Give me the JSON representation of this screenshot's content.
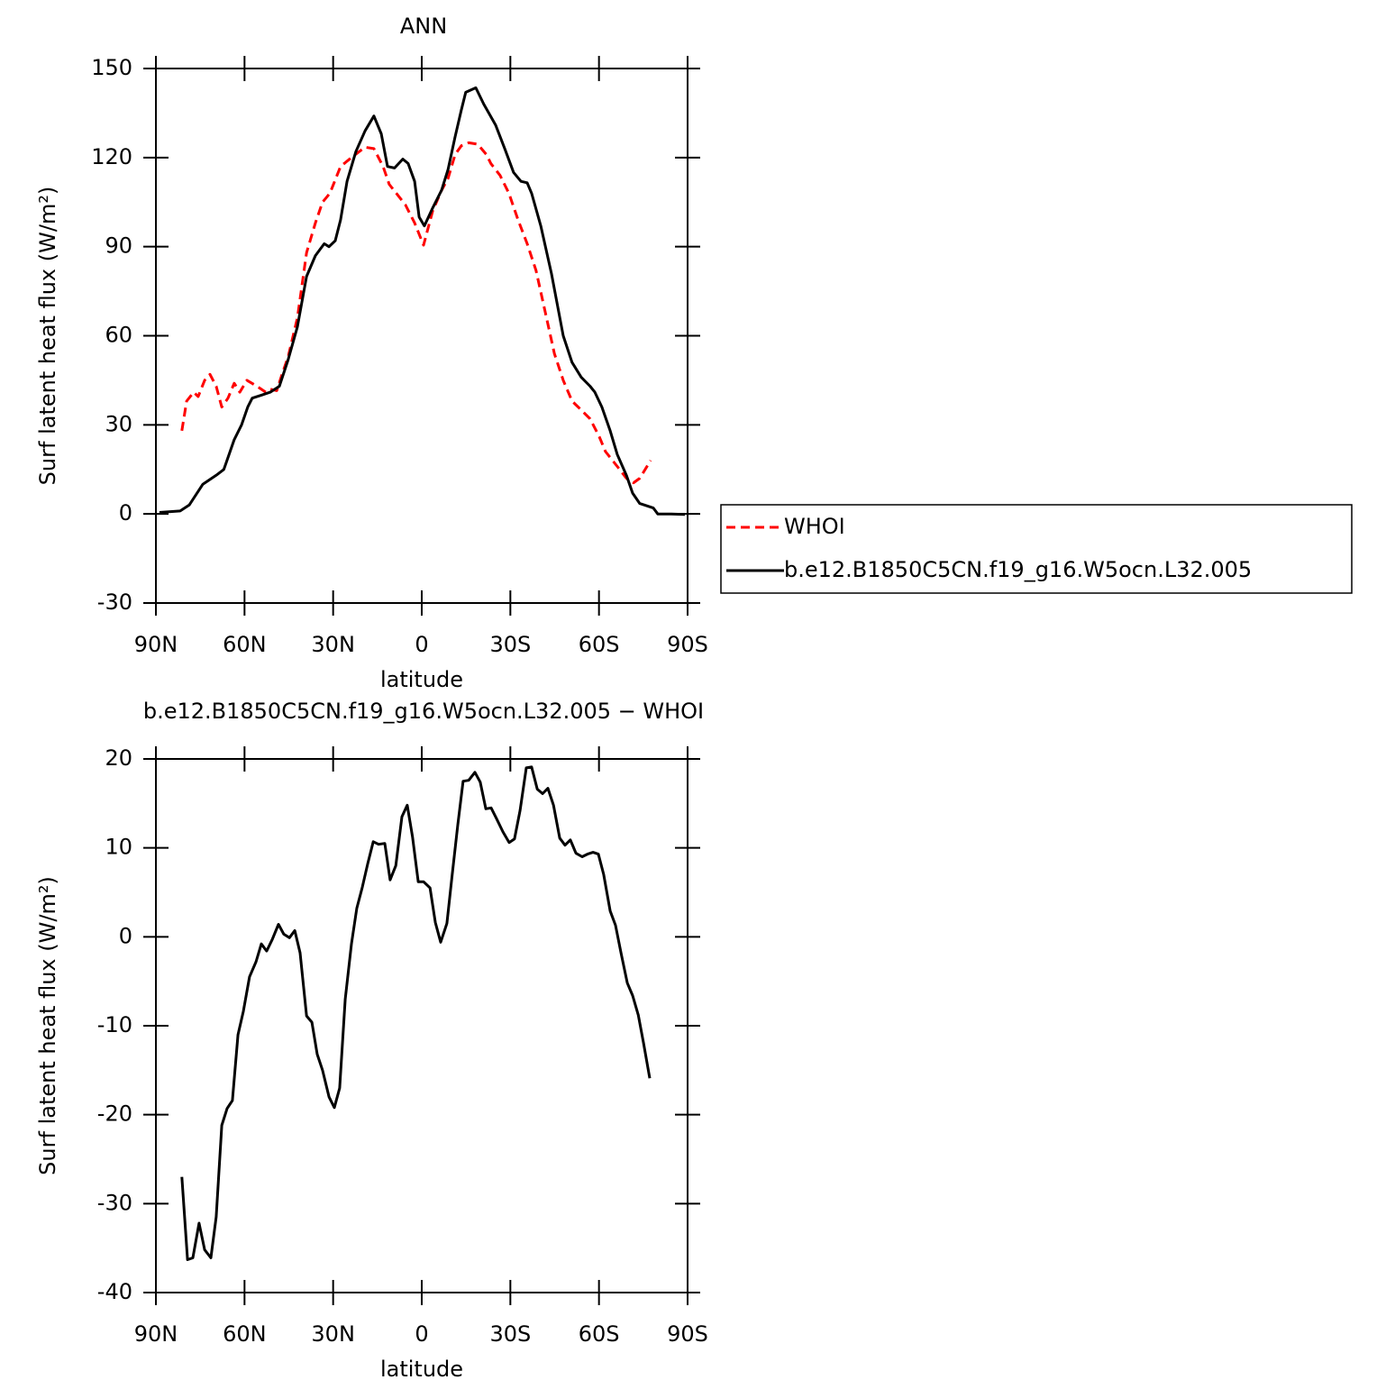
{
  "chart_data": [
    {
      "type": "line",
      "title": "ANN",
      "xlabel": "latitude",
      "ylabel": "Surf latent heat flux (W/m²)",
      "xlim": [
        90,
        -90
      ],
      "xticks": [
        {
          "value": 90,
          "label": "90N"
        },
        {
          "value": 60,
          "label": "60N"
        },
        {
          "value": 30,
          "label": "30N"
        },
        0,
        {
          "value": -30,
          "label": "30S"
        },
        {
          "value": -60,
          "label": "60S"
        },
        {
          "value": -90,
          "label": "90S"
        }
      ],
      "ylim": [
        -30,
        150
      ],
      "yticks": [
        -30,
        0,
        30,
        60,
        90,
        120,
        150
      ],
      "grid": false,
      "legend": "right",
      "series": [
        {
          "name": "WHOI",
          "color": "#ff0000",
          "dash": true,
          "x": [
            81.2,
            79.6,
            77.2,
            75.7,
            73.5,
            71.7,
            69.6,
            67.7,
            65.6,
            63.5,
            61.6,
            59.2,
            55.8,
            52.8,
            51.3,
            49.1,
            47.3,
            45.2,
            42.1,
            39,
            36,
            33.6,
            31.1,
            27.5,
            23.8,
            19.2,
            16.2,
            13.1,
            11,
            8.6,
            5.5,
            2.4,
            -0.6,
            -3.7,
            -6.7,
            -8.9,
            -11.3,
            -13.4,
            -15.9,
            -18.9,
            -21.9,
            -23.4,
            -26.5,
            -29.5,
            -32.6,
            -35.7,
            -38.7,
            -41.8,
            -44.9,
            -47.9,
            -50.9,
            -54,
            -57,
            -60.1,
            -62.2,
            -66.2,
            -69.3,
            -71.7,
            -73.8,
            -77.5
          ],
          "values": [
            28,
            38,
            41,
            39.5,
            45,
            47,
            43,
            36,
            39,
            44,
            41,
            45,
            43,
            41,
            42,
            41.5,
            47,
            53,
            66,
            88,
            98,
            105,
            108,
            117,
            120,
            123.5,
            123,
            117,
            111,
            108,
            104,
            98,
            90.5,
            102,
            109,
            113,
            121,
            124,
            125,
            124.5,
            121,
            118,
            114,
            108,
            99,
            91,
            82,
            68,
            54,
            45,
            38,
            35,
            32,
            26,
            21,
            16,
            12,
            10.5,
            12,
            18
          ]
        },
        {
          "name": "b.e12.B1850C5CN.f19_g16.W5ocn.L32.005",
          "color": "#000000",
          "dash": false,
          "x": [
            88.8,
            81.8,
            78.7,
            74.1,
            69.6,
            67,
            63.5,
            61,
            58.9,
            57.4,
            54.3,
            51.3,
            48.2,
            45.2,
            42.1,
            39,
            36,
            33,
            31.4,
            29.3,
            27.5,
            25.3,
            22.3,
            19.2,
            16.2,
            13.7,
            11.6,
            9.2,
            6.4,
            4.6,
            2.4,
            0.9,
            -0.9,
            -3.7,
            -6.7,
            -8.9,
            -11.3,
            -13.4,
            -14.9,
            -18.3,
            -21,
            -25,
            -28.1,
            -31.1,
            -33.6,
            -35.7,
            -37.2,
            -40.3,
            -43.9,
            -47.9,
            -50.9,
            -54,
            -57,
            -58.6,
            -61,
            -63.8,
            -66.2,
            -69.3,
            -71.4,
            -73.8,
            -76.9,
            -78.4,
            -79.9,
            -84.5,
            -89.1
          ],
          "values": [
            0.5,
            1,
            3,
            10,
            13,
            15,
            25,
            30,
            36,
            39,
            40,
            41,
            43,
            52,
            63,
            80,
            87,
            91,
            90,
            92,
            99,
            112,
            122,
            129,
            134,
            128,
            117,
            116.5,
            119.5,
            118,
            112,
            100,
            97,
            103,
            109,
            116,
            127,
            136,
            142,
            143.5,
            138,
            131,
            123,
            115,
            112,
            111.5,
            108,
            97,
            81,
            60,
            51,
            46,
            43,
            41,
            36,
            28,
            20,
            13,
            7,
            3.5,
            2.5,
            2,
            0,
            0,
            -0.2
          ]
        }
      ]
    },
    {
      "type": "line",
      "title": "b.e12.B1850C5CN.f19_g16.W5ocn.L32.005 − WHOI",
      "xlabel": "latitude",
      "ylabel": "Surf latent heat flux (W/m²)",
      "xlim": [
        90,
        -90
      ],
      "xticks": [
        {
          "value": 90,
          "label": "90N"
        },
        {
          "value": 60,
          "label": "60N"
        },
        {
          "value": 30,
          "label": "30N"
        },
        0,
        {
          "value": -30,
          "label": "30S"
        },
        {
          "value": -60,
          "label": "60S"
        },
        {
          "value": -90,
          "label": "90S"
        }
      ],
      "ylim": [
        -40,
        20
      ],
      "yticks": [
        -40,
        -30,
        -20,
        -10,
        0,
        10,
        20
      ],
      "grid": false,
      "series": [
        {
          "color": "#000000",
          "dash": false,
          "x": [
            81.2,
            79.3,
            77.5,
            75.4,
            73.5,
            71.4,
            69.6,
            67.7,
            65.9,
            64.1,
            62.2,
            60.4,
            58.3,
            56.1,
            54.3,
            52.5,
            50.6,
            48.5,
            46.7,
            44.8,
            43,
            41.2,
            39,
            37.2,
            35.4,
            33.6,
            31.4,
            29.6,
            27.8,
            25.9,
            23.8,
            22,
            20.1,
            18.3,
            16.4,
            14.6,
            12.5,
            10.7,
            8.8,
            6.7,
            4.9,
            3.1,
            1.2,
            -0.6,
            -2.8,
            -4.6,
            -6.4,
            -8.5,
            -10.3,
            -12.2,
            -14,
            -15.9,
            -18,
            -19.8,
            -21.7,
            -23.5,
            -25.3,
            -27.5,
            -29.6,
            -31.4,
            -33.3,
            -35.4,
            -37.2,
            -39.1,
            -40.9,
            -42.7,
            -44.6,
            -46.7,
            -48.5,
            -50.3,
            -52.2,
            -54.3,
            -56.1,
            -58,
            -59.8,
            -61.6,
            -63.8,
            -65.6,
            -67.5,
            -69.6,
            -71.4,
            -73.3,
            -75.1,
            -77.2
          ],
          "values": [
            -27,
            -36.3,
            -36.1,
            -32.2,
            -35.2,
            -36.1,
            -31.5,
            -21.2,
            -19.3,
            -18.4,
            -11,
            -8.4,
            -4.5,
            -2.8,
            -0.8,
            -1.6,
            -0.3,
            1.4,
            0.3,
            -0.1,
            0.7,
            -1.8,
            -8.9,
            -9.6,
            -13.2,
            -15,
            -18,
            -19.2,
            -17,
            -7,
            -0.8,
            3.2,
            5.6,
            8.2,
            10.7,
            10.4,
            10.5,
            6.4,
            8,
            13.5,
            14.8,
            11.2,
            6.2,
            6.2,
            5.5,
            1.6,
            -0.6,
            1.5,
            7,
            12.6,
            17.5,
            17.6,
            18.5,
            17.4,
            14.4,
            14.5,
            13.3,
            11.8,
            10.6,
            11,
            14.2,
            19,
            19.1,
            16.6,
            16.1,
            16.7,
            14.8,
            11.1,
            10.3,
            10.9,
            9.4,
            9,
            9.3,
            9.5,
            9.3,
            7,
            2.9,
            1.3,
            -1.9,
            -5.2,
            -6.6,
            -8.8,
            -12,
            -15.9
          ]
        }
      ]
    }
  ]
}
